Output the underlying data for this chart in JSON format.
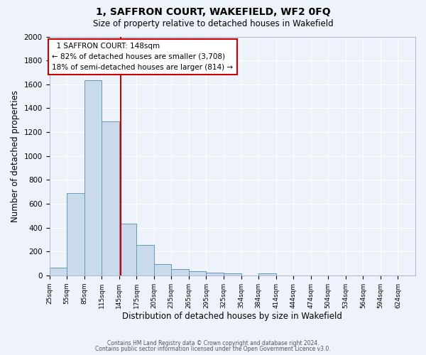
{
  "title": "1, SAFFRON COURT, WAKEFIELD, WF2 0FQ",
  "subtitle": "Size of property relative to detached houses in Wakefield",
  "xlabel": "Distribution of detached houses by size in Wakefield",
  "ylabel": "Number of detached properties",
  "bar_color": "#c9daea",
  "bar_edge_color": "#6699bb",
  "bar_heights": [
    65,
    690,
    1635,
    1290,
    435,
    255,
    95,
    55,
    32,
    22,
    14,
    0,
    18,
    0,
    0,
    0,
    0,
    0,
    0,
    0,
    0
  ],
  "x_tick_labels": [
    "25sqm",
    "55sqm",
    "85sqm",
    "115sqm",
    "145sqm",
    "175sqm",
    "205sqm",
    "235sqm",
    "265sqm",
    "295sqm",
    "325sqm",
    "354sqm",
    "384sqm",
    "414sqm",
    "444sqm",
    "474sqm",
    "504sqm",
    "534sqm",
    "564sqm",
    "594sqm",
    "624sqm"
  ],
  "ylim": [
    0,
    2000
  ],
  "yticks": [
    0,
    200,
    400,
    600,
    800,
    1000,
    1200,
    1400,
    1600,
    1800,
    2000
  ],
  "vline_x": 4.93,
  "vline_color": "#cc0000",
  "annotation_title": "1 SAFFRON COURT: 148sqm",
  "annotation_line1": "← 82% of detached houses are smaller (3,708)",
  "annotation_line2": "18% of semi-detached houses are larger (814) →",
  "annotation_box_color": "#ffffff",
  "annotation_box_edge": "#cc0000",
  "footer_line1": "Contains HM Land Registry data © Crown copyright and database right 2024.",
  "footer_line2": "Contains public sector information licensed under the Open Government Licence v3.0.",
  "background_color": "#eef2fb",
  "plot_background": "#eef2fb",
  "grid_color": "#ffffff",
  "n_bars": 21
}
